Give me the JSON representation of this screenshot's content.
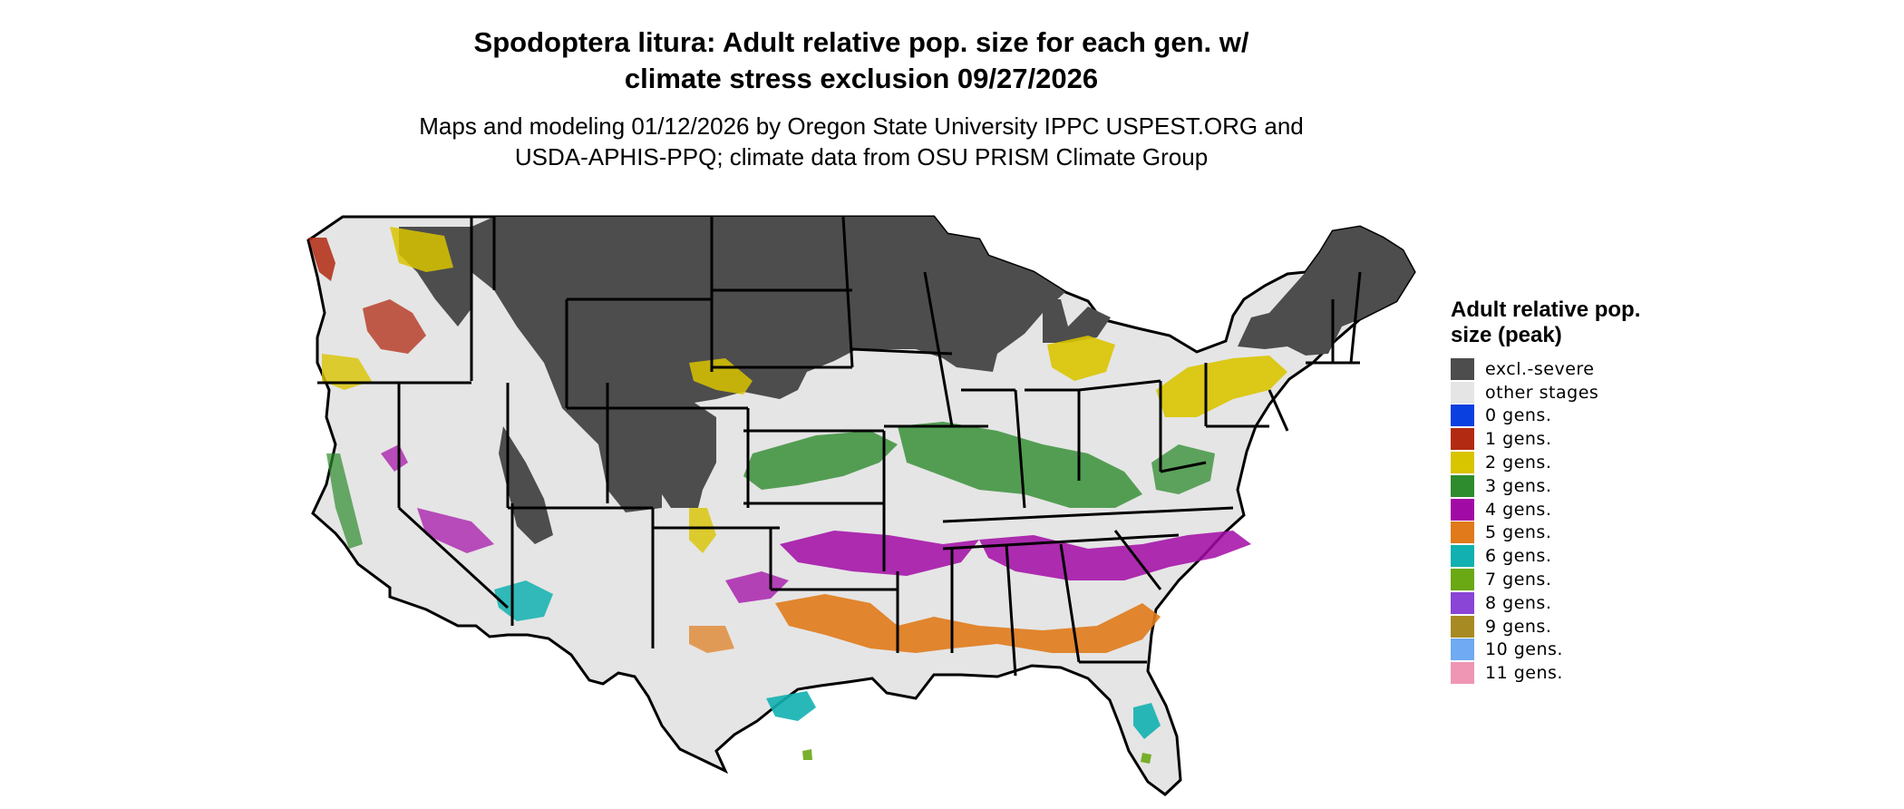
{
  "title": {
    "line1": "Spodoptera litura: Adult relative pop. size for each gen. w/",
    "line2": "climate stress exclusion 09/27/2026"
  },
  "subtitle": {
    "line1": "Maps and modeling 01/12/2026 by Oregon State University IPPC USPEST.ORG and",
    "line2": "USDA-APHIS-PPQ; climate data from OSU PRISM Climate Group"
  },
  "legend": {
    "title": "Adult relative pop. size (peak)",
    "items": [
      {
        "label": "excl.-severe",
        "color": "#4d4d4d"
      },
      {
        "label": "other stages",
        "color": "#e5e5e5"
      },
      {
        "label": "0 gens.",
        "color": "#0a3fe0"
      },
      {
        "label": "1 gens.",
        "color": "#b22a12"
      },
      {
        "label": "2 gens.",
        "color": "#d9c400"
      },
      {
        "label": "3 gens.",
        "color": "#2e8b2e"
      },
      {
        "label": "4 gens.",
        "color": "#a20aa6"
      },
      {
        "label": "5 gens.",
        "color": "#e07a1a"
      },
      {
        "label": "6 gens.",
        "color": "#12b0b0"
      },
      {
        "label": "7 gens.",
        "color": "#6aa814"
      },
      {
        "label": "8 gens.",
        "color": "#8a44d6"
      },
      {
        "label": "9 gens.",
        "color": "#a88a22"
      },
      {
        "label": "10 gens.",
        "color": "#70aaf2"
      },
      {
        "label": "11 gens.",
        "color": "#ee96b4"
      }
    ]
  },
  "map": {
    "region": "conterminous-united-states",
    "background_color": "#e5e5e5",
    "border_color": "#000000",
    "zones": [
      {
        "name": "northern-plains-exclusion",
        "category": "excl.-severe",
        "color": "#4d4d4d"
      },
      {
        "name": "upper-midwest-exclusion",
        "category": "excl.-severe",
        "color": "#4d4d4d"
      },
      {
        "name": "rocky-mountain-exclusion",
        "category": "excl.-severe",
        "color": "#4d4d4d"
      },
      {
        "name": "new-england-exclusion",
        "category": "excl.-severe",
        "color": "#4d4d4d"
      },
      {
        "name": "great-basin-exclusion",
        "category": "excl.-severe",
        "color": "#4d4d4d"
      },
      {
        "name": "pacific-northwest-1gen",
        "category": "1 gens.",
        "color": "#b22a12"
      },
      {
        "name": "pacific-northwest-2gen",
        "category": "2 gens.",
        "color": "#d9c400"
      },
      {
        "name": "great-lakes-2gen",
        "category": "2 gens.",
        "color": "#d9c400"
      },
      {
        "name": "northeast-2gen",
        "category": "2 gens.",
        "color": "#d9c400"
      },
      {
        "name": "central-plains-3gen",
        "category": "3 gens.",
        "color": "#2e8b2e"
      },
      {
        "name": "ohio-valley-3gen",
        "category": "3 gens.",
        "color": "#2e8b2e"
      },
      {
        "name": "mid-south-4gen",
        "category": "4 gens.",
        "color": "#a20aa6"
      },
      {
        "name": "carolinas-4gen",
        "category": "4 gens.",
        "color": "#a20aa6"
      },
      {
        "name": "southwest-4gen",
        "category": "4 gens.",
        "color": "#a20aa6"
      },
      {
        "name": "gulf-states-5gen",
        "category": "5 gens.",
        "color": "#e07a1a"
      },
      {
        "name": "south-texas-6gen",
        "category": "6 gens.",
        "color": "#12b0b0"
      },
      {
        "name": "arizona-6gen",
        "category": "6 gens.",
        "color": "#12b0b0"
      },
      {
        "name": "florida-6gen",
        "category": "6 gens.",
        "color": "#12b0b0"
      },
      {
        "name": "coastal-7gen",
        "category": "7 gens.",
        "color": "#6aa814"
      }
    ]
  }
}
